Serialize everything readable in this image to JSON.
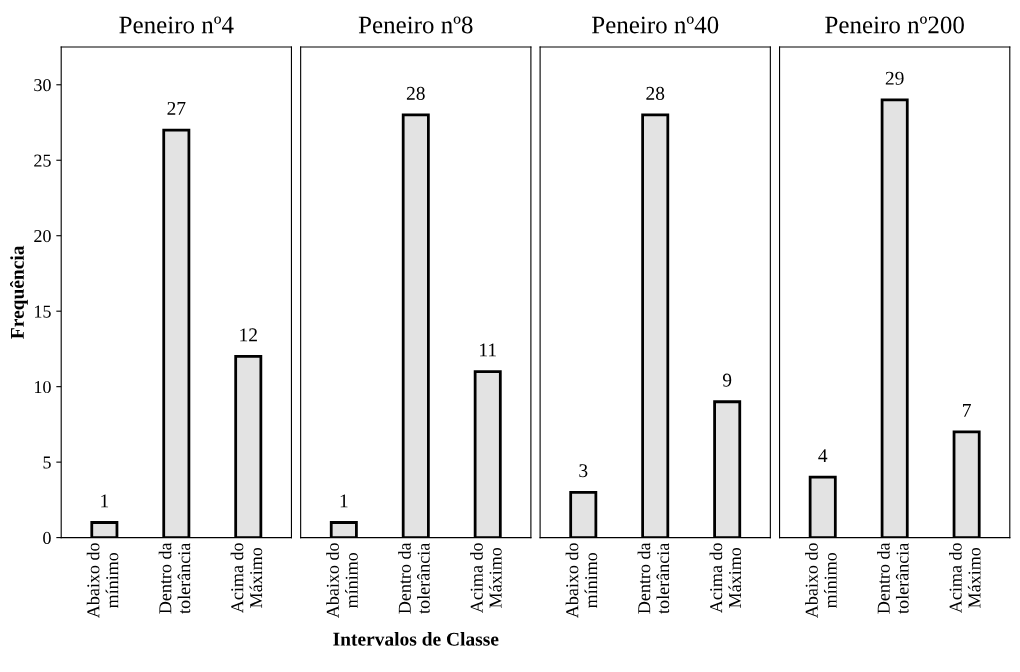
{
  "chart_data": [
    {
      "type": "bar",
      "title": "Peneiro nº4",
      "ylabel": "Frequência",
      "categories": [
        "Abaixo do\nmínimo",
        "Dentro da\ntolerância",
        "Acima do\nMáximo"
      ],
      "values": [
        1,
        27,
        12
      ],
      "color": "#e3e3e3",
      "ylim": [
        0,
        32.5
      ],
      "yticks": [
        0,
        5,
        10,
        15,
        20,
        25,
        30
      ],
      "data_labels": true,
      "grid": false,
      "legend": false
    },
    {
      "type": "bar",
      "title": "Peneiro nº8",
      "xlabel": "Intervalos de Classe",
      "categories": [
        "Abaixo do\nmínimo",
        "Dentro da\ntolerância",
        "Acima do\nMáximo"
      ],
      "values": [
        1,
        28,
        11
      ],
      "color": "#e3e3e3",
      "ylim": [
        0,
        32.5
      ],
      "tick_labels": "x",
      "data_labels": true,
      "grid": false,
      "legend": false
    },
    {
      "type": "bar",
      "title": "Peneiro nº40",
      "categories": [
        "Abaixo do\nmínimo",
        "Dentro da\ntolerância",
        "Acima do\nMáximo"
      ],
      "values": [
        3,
        28,
        9
      ],
      "color": "#e3e3e3",
      "ylim": [
        0,
        32.5
      ],
      "tick_labels": "x",
      "data_labels": true,
      "grid": false,
      "legend": false
    },
    {
      "type": "bar",
      "title": "Peneiro nº200",
      "categories": [
        "Abaixo do\nmínimo",
        "Dentro da\ntolerância",
        "Acima do\nMáximo"
      ],
      "values": [
        4,
        29,
        7
      ],
      "color": "#e3e3e3",
      "ylim": [
        0,
        32.5
      ],
      "tick_labels": "x",
      "data_labels": true,
      "grid": false,
      "legend": false
    }
  ]
}
